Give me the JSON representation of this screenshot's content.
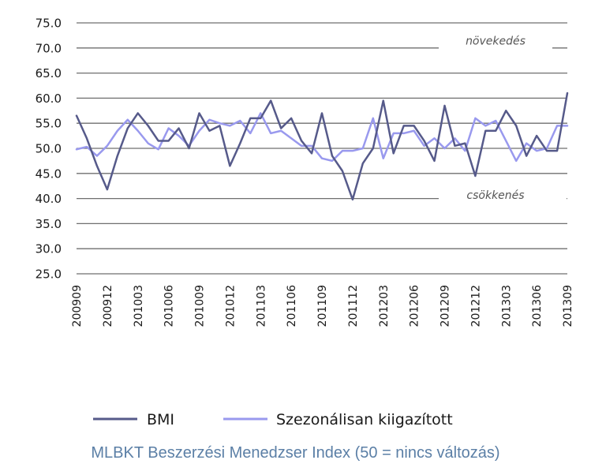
{
  "caption": "MLBKT Beszerzési Menedzser Index (50 = nincs változás)",
  "chart_data": {
    "type": "line",
    "title": "",
    "xlabel": "",
    "ylabel": "",
    "ylim": [
      25,
      75
    ],
    "ytick_step": 5,
    "grid": "horizontal",
    "legend_position": "bottom",
    "x_tick_labels": [
      "200909",
      "200912",
      "201003",
      "201006",
      "201009",
      "201012",
      "201103",
      "201106",
      "201109",
      "201112",
      "201203",
      "201206",
      "201209",
      "201212",
      "201303",
      "201306",
      "201309"
    ],
    "annotations": [
      {
        "text": "növekedés",
        "y": 71.5
      },
      {
        "text": "csökkenés",
        "y": 40.7
      }
    ],
    "x": [
      "2009-09",
      "2009-10",
      "2009-11",
      "2009-12",
      "2010-01",
      "2010-02",
      "2010-03",
      "2010-04",
      "2010-05",
      "2010-06",
      "2010-07",
      "2010-08",
      "2010-09",
      "2010-10",
      "2010-11",
      "2010-12",
      "2011-01",
      "2011-02",
      "2011-03",
      "2011-04",
      "2011-05",
      "2011-06",
      "2011-07",
      "2011-08",
      "2011-09",
      "2011-10",
      "2011-11",
      "2011-12",
      "2012-01",
      "2012-02",
      "2012-03",
      "2012-04",
      "2012-05",
      "2012-06",
      "2012-07",
      "2012-08",
      "2012-09",
      "2012-10",
      "2012-11",
      "2012-12",
      "2013-01",
      "2013-02",
      "2013-03",
      "2013-04",
      "2013-05",
      "2013-06",
      "2013-07",
      "2013-08",
      "2013-09"
    ],
    "series": [
      {
        "name": "BMI",
        "color": "#565a8a",
        "width": 2.5,
        "values": [
          56.5,
          52.0,
          46.5,
          41.8,
          48.5,
          54.0,
          57.0,
          54.5,
          51.5,
          51.5,
          54.0,
          50.0,
          57.0,
          53.5,
          54.5,
          46.5,
          51.0,
          56.0,
          56.0,
          59.5,
          54.0,
          56.0,
          51.5,
          49.0,
          57.0,
          48.5,
          45.5,
          39.8,
          47.0,
          50.0,
          59.5,
          49.0,
          54.5,
          54.5,
          51.5,
          47.5,
          58.5,
          50.5,
          51.0,
          44.5,
          53.5,
          53.5,
          57.5,
          54.5,
          48.5,
          52.5,
          49.5,
          49.5,
          61.0
        ]
      },
      {
        "name": "Szezonálisan kiigazított",
        "color": "#9999ee",
        "width": 2.5,
        "values": [
          49.8,
          50.3,
          48.5,
          50.5,
          53.5,
          55.7,
          53.5,
          51.0,
          49.8,
          54.0,
          52.5,
          50.5,
          53.5,
          55.7,
          55.0,
          54.5,
          55.5,
          53.0,
          57.0,
          53.0,
          53.5,
          52.0,
          50.5,
          50.5,
          48.0,
          47.5,
          49.5,
          49.5,
          50.0,
          56.0,
          48.0,
          53.0,
          53.0,
          53.5,
          50.5,
          52.0,
          50.0,
          52.0,
          49.5,
          56.0,
          54.5,
          55.5,
          51.5,
          47.5,
          51.0,
          49.5,
          50.0,
          54.5,
          54.5
        ]
      }
    ]
  }
}
